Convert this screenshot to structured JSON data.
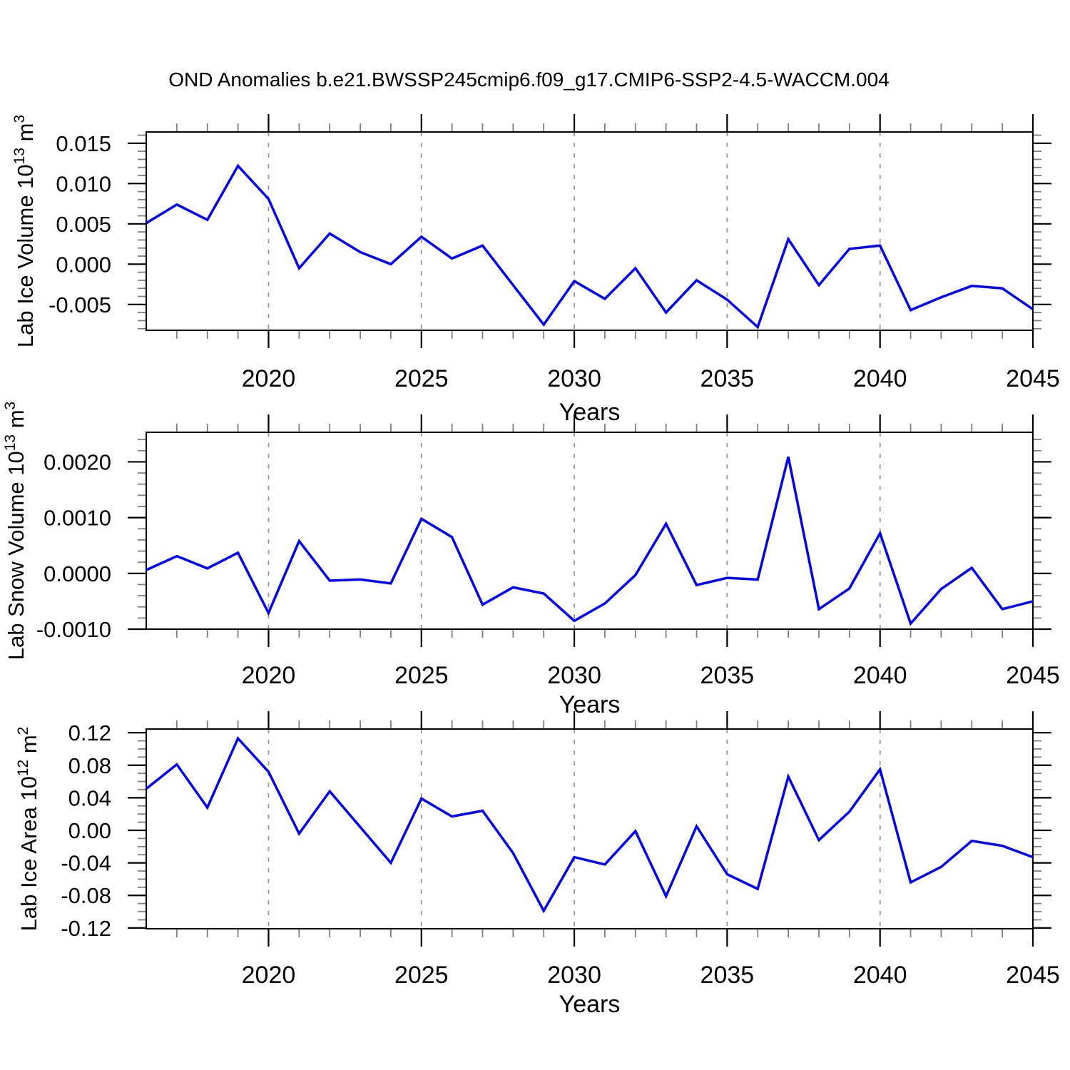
{
  "title": "OND Anomalies b.e21.BWSSP245cmip6.f09_g17.CMIP6-SSP2-4.5-WACCM.004",
  "style": {
    "line_color": "#0000ff",
    "axis_color": "#000000",
    "minor_tick_color": "#7f7f7f",
    "grid_color": "#999999",
    "text_color": "#000000",
    "background": "#ffffff"
  },
  "x_axis": {
    "label": "Years",
    "min": 2016,
    "max": 2045,
    "major_ticks": [
      2020,
      2025,
      2030,
      2035,
      2040,
      2045
    ],
    "major_tick_labels": [
      "2020",
      "2025",
      "2030",
      "2035",
      "2040",
      "2045"
    ],
    "minor_tick_step": 1,
    "grid_years": [
      2020,
      2025,
      2030,
      2035,
      2040
    ]
  },
  "chart_data": [
    {
      "type": "line",
      "name": "lab-ice-volume",
      "ylabel_segments": [
        {
          "text": "Lab Ice Volume 10",
          "sup": false
        },
        {
          "text": "13",
          "sup": true
        },
        {
          "text": " m",
          "sup": false
        },
        {
          "text": "3",
          "sup": true
        }
      ],
      "ylim": [
        -0.0082,
        0.0164
      ],
      "ytick_values": [
        0.015,
        0.01,
        0.005,
        0.0,
        -0.005
      ],
      "ytick_labels": [
        "0.015",
        "0.010",
        "0.005",
        "0.000",
        "-0.005"
      ],
      "yminor_step": 0.001,
      "x": [
        2016,
        2017,
        2018,
        2019,
        2020,
        2021,
        2022,
        2023,
        2024,
        2025,
        2026,
        2027,
        2028,
        2029,
        2030,
        2031,
        2032,
        2033,
        2034,
        2035,
        2036,
        2037,
        2038,
        2039,
        2040,
        2041,
        2042,
        2043,
        2044,
        2045
      ],
      "values": [
        0.0051,
        0.0074,
        0.0055,
        0.0122,
        0.0081,
        -0.0005,
        0.0038,
        0.0015,
        0.0,
        0.0034,
        0.0007,
        0.0023,
        -0.0026,
        -0.0075,
        -0.0021,
        -0.0043,
        -0.0005,
        -0.006,
        -0.002,
        -0.0044,
        -0.0078,
        0.0031,
        -0.0026,
        0.0019,
        0.0023,
        -0.0057,
        -0.0041,
        -0.0027,
        -0.003,
        -0.0056
      ]
    },
    {
      "type": "line",
      "name": "lab-snow-volume",
      "ylabel_segments": [
        {
          "text": "Lab Snow Volume 10",
          "sup": false
        },
        {
          "text": "13",
          "sup": true
        },
        {
          "text": " m",
          "sup": false
        },
        {
          "text": "3",
          "sup": true
        }
      ],
      "ylim": [
        -0.001,
        0.00253
      ],
      "ytick_values": [
        0.002,
        0.001,
        0.0,
        -0.001
      ],
      "ytick_labels": [
        "0.0020",
        "0.0010",
        "0.0000",
        "-0.0010"
      ],
      "yminor_step": 0.0002,
      "x": [
        2016,
        2017,
        2018,
        2019,
        2020,
        2021,
        2022,
        2023,
        2024,
        2025,
        2026,
        2027,
        2028,
        2029,
        2030,
        2031,
        2032,
        2033,
        2034,
        2035,
        2036,
        2037,
        2038,
        2039,
        2040,
        2041,
        2042,
        2043,
        2044,
        2045
      ],
      "values": [
        6e-05,
        0.00031,
        9e-05,
        0.00037,
        -0.00071,
        0.00058,
        -0.00013,
        -0.00011,
        -0.00018,
        0.00098,
        0.00065,
        -0.00056,
        -0.00025,
        -0.00036,
        -0.00085,
        -0.00054,
        -3e-05,
        0.00089,
        -0.00021,
        -8e-05,
        -0.00011,
        0.00209,
        -0.00064,
        -0.00027,
        0.00072,
        -0.0009,
        -0.00028,
        0.0001,
        -0.00064,
        -0.0005
      ]
    },
    {
      "type": "line",
      "name": "lab-ice-area",
      "ylabel_segments": [
        {
          "text": "Lab Ice Area 10",
          "sup": false
        },
        {
          "text": "12",
          "sup": true
        },
        {
          "text": " m",
          "sup": false
        },
        {
          "text": "2",
          "sup": true
        }
      ],
      "ylim": [
        -0.121,
        0.1245
      ],
      "ytick_values": [
        0.12,
        0.08,
        0.04,
        0.0,
        -0.04,
        -0.08,
        -0.12
      ],
      "ytick_labels": [
        "0.12",
        "0.08",
        "0.04",
        "0.00",
        "-0.04",
        "-0.08",
        "-0.12"
      ],
      "yminor_step": 0.01,
      "x": [
        2016,
        2017,
        2018,
        2019,
        2020,
        2021,
        2022,
        2023,
        2024,
        2025,
        2026,
        2027,
        2028,
        2029,
        2030,
        2031,
        2032,
        2033,
        2034,
        2035,
        2036,
        2037,
        2038,
        2039,
        2040,
        2041,
        2042,
        2043,
        2044,
        2045
      ],
      "values": [
        0.051,
        0.081,
        0.028,
        0.113,
        0.072,
        -0.004,
        0.048,
        0.004,
        -0.04,
        0.039,
        0.017,
        0.024,
        -0.028,
        -0.099,
        -0.033,
        -0.042,
        -0.001,
        -0.081,
        0.005,
        -0.054,
        -0.072,
        0.066,
        -0.012,
        0.023,
        0.075,
        -0.064,
        -0.045,
        -0.013,
        -0.019,
        -0.033
      ]
    }
  ]
}
